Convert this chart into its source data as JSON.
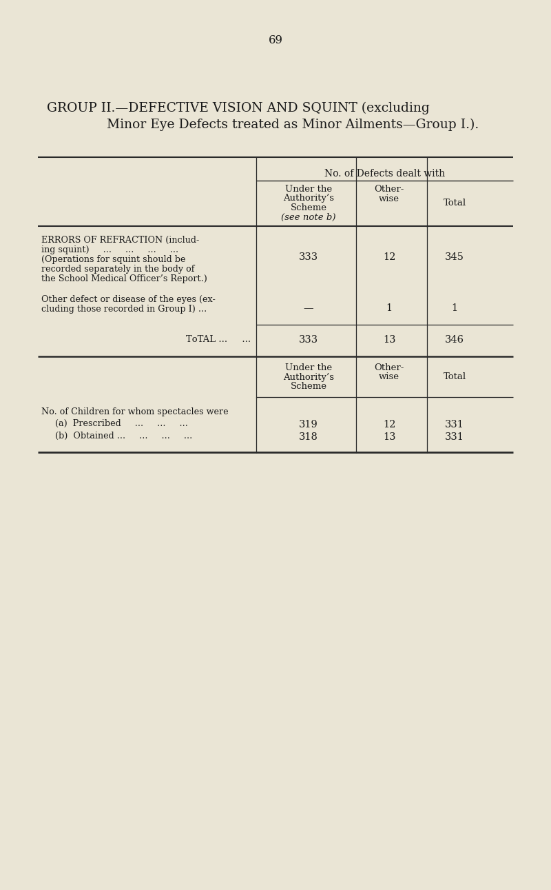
{
  "page_number": "69",
  "title_line1": "GROUP II.—DEFECTIVE VISION AND SQUINT (excluding",
  "title_line2": "Minor Eye Defects treated as Minor Ailments—Group I.).",
  "bg_color": "#EAE5D5",
  "text_color": "#1a1a1a",
  "header_main": "No. of Defects dealt with",
  "row1_label_lines": [
    "ERRORS OF REFRACTION (includ-",
    "ing squint)     ...     ...     ...     ...",
    "(Operations for squint should be",
    "recorded separately in the body of",
    "the School Medical Officer’s Report.)"
  ],
  "row1_values": [
    "333",
    "12",
    "345"
  ],
  "row2_label_lines": [
    "Other defect or disease of the eyes (ex-",
    "cluding those recorded in Group I) ..."
  ],
  "row2_values": [
    "—",
    "1",
    "1"
  ],
  "total_label": "TᴏTAL ...",
  "total_sub": "...",
  "total_values": [
    "333",
    "13",
    "346"
  ],
  "section2_row_label": "No. of Children for whom spectacles were",
  "section2_sub_rows": [
    [
      "(a)  Prescribed     ...     ...     ...",
      "319",
      "12",
      "331"
    ],
    [
      "(b)  Obtained ...     ...     ...     ...",
      "318",
      "13",
      "331"
    ]
  ],
  "col1_header_lines": [
    "Under the",
    "Authority’s",
    "Scheme",
    "(see note b)"
  ],
  "col2_header_lines": [
    "Other-",
    "wise"
  ],
  "col3_header_lines": [
    "Total"
  ],
  "sec2_col1_lines": [
    "Under the",
    "Authority’s",
    "Scheme"
  ],
  "sec2_col2_lines": [
    "Other-",
    "wise"
  ],
  "sec2_col3_lines": [
    "Total"
  ]
}
